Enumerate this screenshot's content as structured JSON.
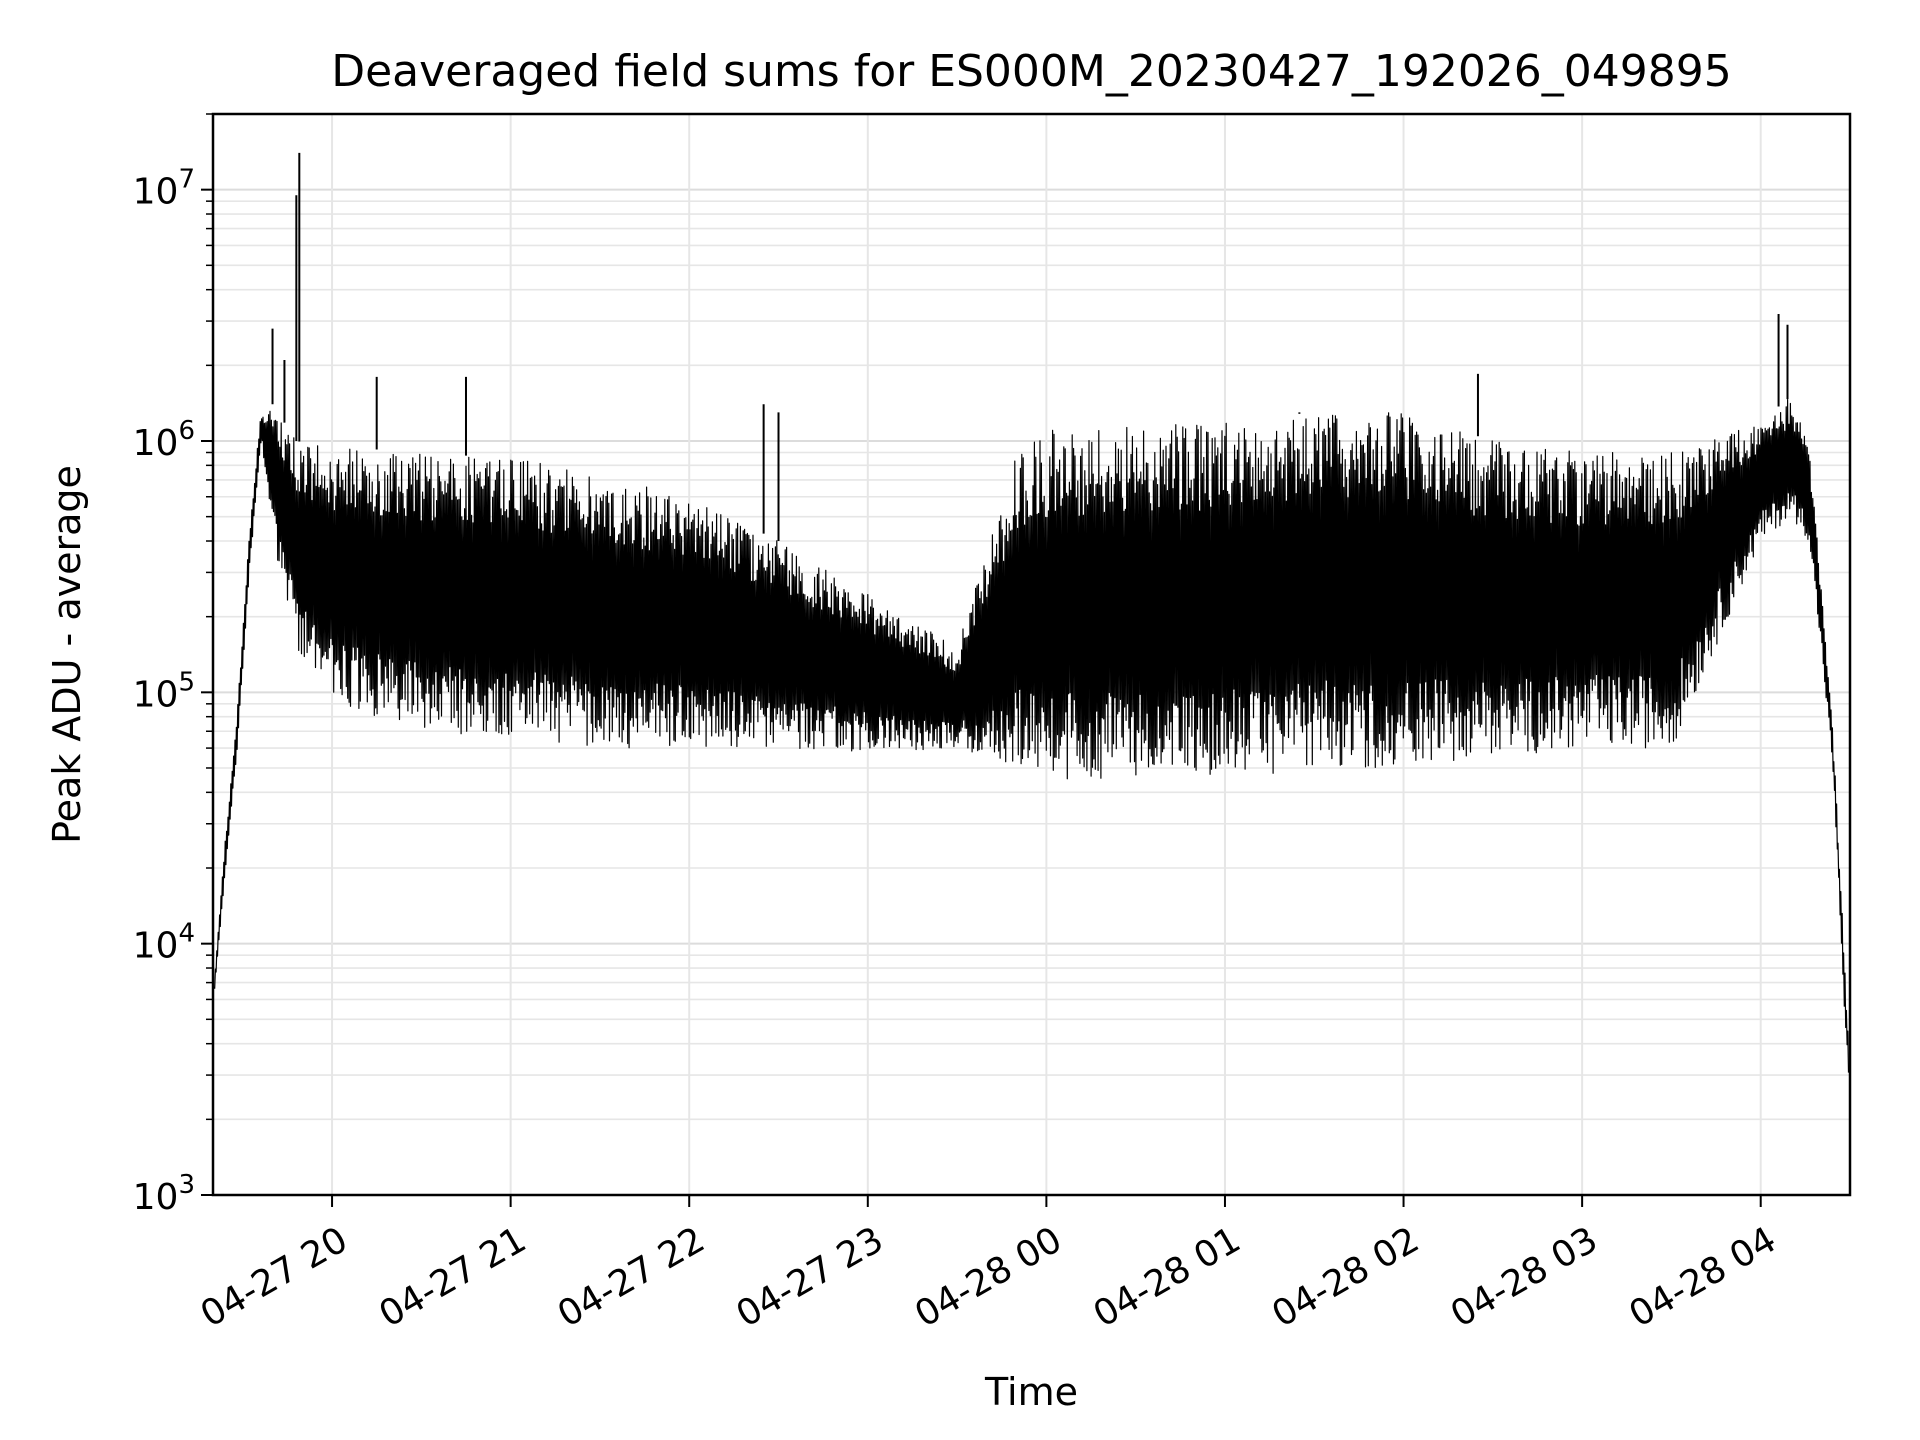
{
  "chart_data": {
    "type": "line",
    "title": "Deaveraged field sums for ES000M_20230427_192026_049895",
    "xlabel": "Time",
    "ylabel": "Peak ADU - average",
    "yscale": "log",
    "ylim": [
      1000,
      20000000
    ],
    "xlim": [
      "2023-04-27 19:20",
      "2023-04-28 04:30"
    ],
    "grid": "major and minor",
    "line_color": "#000000",
    "x_ticks": [
      "04-27 20",
      "04-27 21",
      "04-27 22",
      "04-27 23",
      "04-28 00",
      "04-28 01",
      "04-28 02",
      "04-28 03",
      "04-28 04"
    ],
    "y_ticks": [
      {
        "value": 1000,
        "base": "10",
        "exp": "3"
      },
      {
        "value": 10000,
        "base": "10",
        "exp": "4"
      },
      {
        "value": 100000,
        "base": "10",
        "exp": "5"
      },
      {
        "value": 1000000,
        "base": "10",
        "exp": "6"
      },
      {
        "value": 10000000,
        "base": "10",
        "exp": "7"
      }
    ],
    "envelope": {
      "x": [
        "2023-04-27 19:20",
        "2023-04-27 19:24",
        "2023-04-27 19:28",
        "2023-04-27 19:32",
        "2023-04-27 19:36",
        "2023-04-27 19:40",
        "2023-04-27 19:48",
        "2023-04-27 20:00",
        "2023-04-27 20:30",
        "2023-04-27 21:00",
        "2023-04-27 21:30",
        "2023-04-27 22:00",
        "2023-04-27 22:30",
        "2023-04-27 23:00",
        "2023-04-27 23:30",
        "2023-04-27 23:50",
        "2023-04-28 00:00",
        "2023-04-28 00:30",
        "2023-04-28 01:00",
        "2023-04-28 01:30",
        "2023-04-28 02:00",
        "2023-04-28 02:30",
        "2023-04-28 03:00",
        "2023-04-28 03:30",
        "2023-04-28 04:00",
        "2023-04-28 04:10",
        "2023-04-28 04:16",
        "2023-04-28 04:20",
        "2023-04-28 04:24",
        "2023-04-28 04:28",
        "2023-04-28 04:30"
      ],
      "upper": [
        6000,
        25000,
        80000,
        400000,
        1300000,
        1400000,
        1000000,
        950000,
        900000,
        850000,
        750000,
        600000,
        400000,
        250000,
        150000,
        900000,
        1100000,
        1150000,
        1200000,
        1300000,
        1300000,
        1000000,
        900000,
        900000,
        1200000,
        1500000,
        1000000,
        300000,
        80000,
        10000,
        3000
      ],
      "lower": [
        6000,
        20000,
        60000,
        300000,
        1000000,
        400000,
        150000,
        90000,
        70000,
        65000,
        60000,
        60000,
        60000,
        58000,
        60000,
        50000,
        45000,
        45000,
        45000,
        50000,
        50000,
        55000,
        60000,
        60000,
        400000,
        500000,
        400000,
        150000,
        50000,
        5000,
        2000
      ]
    },
    "spikes": [
      {
        "x": "2023-04-27 19:48",
        "y": 9500000
      },
      {
        "x": "2023-04-27 19:49",
        "y": 14000000
      },
      {
        "x": "2023-04-27 19:40",
        "y": 2800000
      },
      {
        "x": "2023-04-27 19:44",
        "y": 2100000
      },
      {
        "x": "2023-04-27 20:15",
        "y": 1800000
      },
      {
        "x": "2023-04-27 20:45",
        "y": 1800000
      },
      {
        "x": "2023-04-27 22:25",
        "y": 1400000
      },
      {
        "x": "2023-04-27 22:30",
        "y": 1300000
      },
      {
        "x": "2023-04-28 01:25",
        "y": 1300000
      },
      {
        "x": "2023-04-28 02:25",
        "y": 1850000
      },
      {
        "x": "2023-04-28 04:06",
        "y": 3200000
      },
      {
        "x": "2023-04-28 04:09",
        "y": 2900000
      }
    ]
  }
}
